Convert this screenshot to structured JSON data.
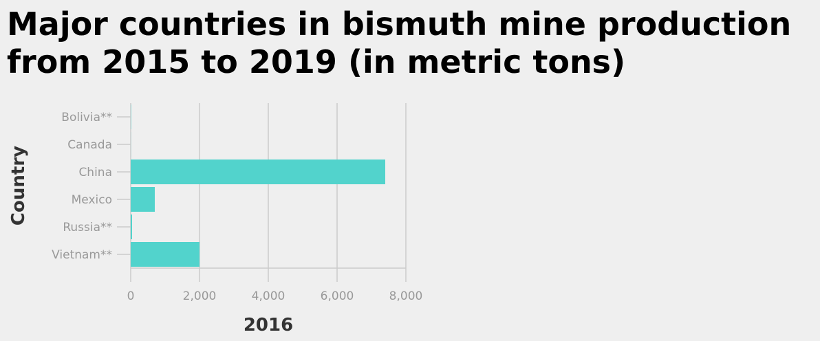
{
  "title_lines": [
    "Major countries in bismuth mine production",
    "from 2015 to 2019 (in metric tons)"
  ],
  "colors": {
    "background": "#efefef",
    "bar": "#52d3cc",
    "grid": "#cccccc",
    "tick_label": "#999999",
    "axis_label": "#333333",
    "title": "#000000"
  },
  "chart_data": {
    "type": "bar",
    "orientation": "horizontal",
    "title": "Major countries in bismuth mine production from 2015 to 2019 (in metric tons)",
    "xlabel": "2016",
    "ylabel": "Country",
    "categories": [
      "Bolivia**",
      "Canada",
      "China",
      "Mexico",
      "Russia**",
      "Vietnam**"
    ],
    "values": [
      10,
      3,
      7400,
      700,
      40,
      2000
    ],
    "xlim": [
      0,
      8000
    ],
    "xticks": [
      0,
      2000,
      4000,
      6000,
      8000
    ],
    "xtick_labels": [
      "0",
      "2,000",
      "4,000",
      "6,000",
      "8,000"
    ],
    "grid": "vertical",
    "legend": "none"
  }
}
